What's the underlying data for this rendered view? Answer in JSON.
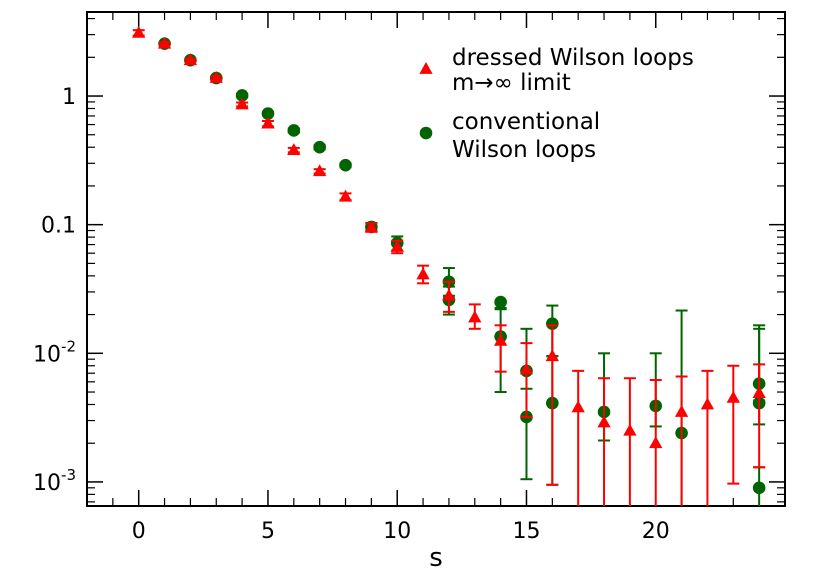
{
  "chart_data": {
    "type": "scatter",
    "xlabel": "s",
    "ylabel": "",
    "xlim": [
      -2,
      25
    ],
    "ylim": [
      0.00065,
      4.5
    ],
    "y_scale": "log",
    "x_ticks": [
      0,
      5,
      10,
      15,
      20
    ],
    "y_ticks": [
      {
        "value": 1,
        "label": "1",
        "sup": ""
      },
      {
        "value": 0.1,
        "label": "0.1",
        "sup": ""
      },
      {
        "value": 0.01,
        "label": "10",
        "sup": "-2"
      },
      {
        "value": 0.001,
        "label": "10",
        "sup": "-3"
      }
    ],
    "grid": false,
    "legend_position": "top-right",
    "series": [
      {
        "name": "dressed Wilson loops",
        "name_line2": "m→∞ limit",
        "color": "#ff0000",
        "marker": "triangle",
        "points": [
          {
            "x": 0,
            "y": 3.1,
            "lo": 2.95,
            "hi": 3.25
          },
          {
            "x": 1,
            "y": 2.55,
            "lo": 2.48,
            "hi": 2.62
          },
          {
            "x": 2,
            "y": 1.9,
            "lo": 1.85,
            "hi": 1.95
          },
          {
            "x": 3,
            "y": 1.38,
            "lo": 1.34,
            "hi": 1.42
          },
          {
            "x": 4,
            "y": 0.86,
            "lo": 0.83,
            "hi": 0.89
          },
          {
            "x": 5,
            "y": 0.61,
            "lo": 0.58,
            "hi": 0.64
          },
          {
            "x": 6,
            "y": 0.38,
            "lo": 0.365,
            "hi": 0.395
          },
          {
            "x": 7,
            "y": 0.26,
            "lo": 0.25,
            "hi": 0.27
          },
          {
            "x": 8,
            "y": 0.165,
            "lo": 0.155,
            "hi": 0.175
          },
          {
            "x": 9,
            "y": 0.095,
            "lo": 0.088,
            "hi": 0.102
          },
          {
            "x": 10,
            "y": 0.067,
            "lo": 0.06,
            "hi": 0.075
          },
          {
            "x": 11,
            "y": 0.041,
            "lo": 0.035,
            "hi": 0.048
          },
          {
            "x": 12,
            "y": 0.028,
            "lo": 0.021,
            "hi": 0.036
          },
          {
            "x": 13,
            "y": 0.019,
            "lo": 0.0155,
            "hi": 0.024
          },
          {
            "x": 14,
            "y": 0.0125,
            "lo": 0.0072,
            "hi": 0.0165
          },
          {
            "x": 15,
            "y": 0.0075,
            "lo": 0.0032,
            "hi": 0.012
          },
          {
            "x": 16,
            "y": 0.0095,
            "lo": 0.00095,
            "hi": 0.0165
          },
          {
            "x": 17,
            "y": 0.0038,
            "lo": 0.0005,
            "hi": 0.0073
          },
          {
            "x": 18,
            "y": 0.0029,
            "lo": 0.0005,
            "hi": 0.0064
          },
          {
            "x": 19,
            "y": 0.0025,
            "lo": 0.0005,
            "hi": 0.0064
          },
          {
            "x": 20,
            "y": 0.002,
            "lo": 0.0005,
            "hi": 0.0062
          },
          {
            "x": 21,
            "y": 0.0035,
            "lo": 0.0005,
            "hi": 0.0066
          },
          {
            "x": 22,
            "y": 0.004,
            "lo": 0.0005,
            "hi": 0.0073
          },
          {
            "x": 23,
            "y": 0.0045,
            "lo": 0.00097,
            "hi": 0.008
          },
          {
            "x": 24,
            "y": 0.0049,
            "lo": 0.0013,
            "hi": 0.0082
          }
        ]
      },
      {
        "name": "conventional",
        "name_line2": "Wilson loops",
        "color": "#006400",
        "marker": "circle",
        "points": [
          {
            "x": 1,
            "y": 2.55,
            "lo": 2.5,
            "hi": 2.6
          },
          {
            "x": 2,
            "y": 1.9,
            "lo": 1.86,
            "hi": 1.94
          },
          {
            "x": 3,
            "y": 1.38,
            "lo": 1.35,
            "hi": 1.41
          },
          {
            "x": 4,
            "y": 1.01,
            "lo": 0.98,
            "hi": 1.04
          },
          {
            "x": 5,
            "y": 0.73,
            "lo": 0.71,
            "hi": 0.75
          },
          {
            "x": 6,
            "y": 0.54,
            "lo": 0.52,
            "hi": 0.56
          },
          {
            "x": 7,
            "y": 0.4,
            "lo": 0.385,
            "hi": 0.415
          },
          {
            "x": 8,
            "y": 0.29,
            "lo": 0.28,
            "hi": 0.3
          },
          {
            "x": 9,
            "y": 0.096,
            "lo": 0.09,
            "hi": 0.103
          },
          {
            "x": 10,
            "y": 0.072,
            "lo": 0.063,
            "hi": 0.081
          },
          {
            "x": 12,
            "y": 0.036,
            "lo": 0.028,
            "hi": 0.046
          },
          {
            "x": 12,
            "y": 0.026,
            "lo": 0.02,
            "hi": 0.033
          },
          {
            "x": 14,
            "y": 0.025,
            "lo": 0.022,
            "hi": 0.0255
          },
          {
            "x": 14,
            "y": 0.0135,
            "lo": 0.005,
            "hi": 0.0225
          },
          {
            "x": 15,
            "y": 0.0073,
            "lo": 0.0032,
            "hi": 0.0155
          },
          {
            "x": 15,
            "y": 0.0032,
            "lo": 0.00105,
            "hi": 0.0053
          },
          {
            "x": 16,
            "y": 0.017,
            "lo": 0.0095,
            "hi": 0.0235
          },
          {
            "x": 16,
            "y": 0.0041,
            "lo": 0.00095,
            "hi": 0.0095
          },
          {
            "x": 18,
            "y": 0.0035,
            "lo": 0.0021,
            "hi": 0.01
          },
          {
            "x": 20,
            "y": 0.0039,
            "lo": 0.0027,
            "hi": 0.01
          },
          {
            "x": 21,
            "y": 0.0024,
            "lo": 0.0006,
            "hi": 0.0215
          },
          {
            "x": 24,
            "y": 0.0058,
            "lo": 0.0043,
            "hi": 0.0165
          },
          {
            "x": 24,
            "y": 0.0041,
            "lo": 0.0028,
            "hi": 0.0155
          },
          {
            "x": 24,
            "y": 0.0009,
            "lo": 0.0005,
            "hi": 0.0013
          }
        ]
      }
    ]
  }
}
